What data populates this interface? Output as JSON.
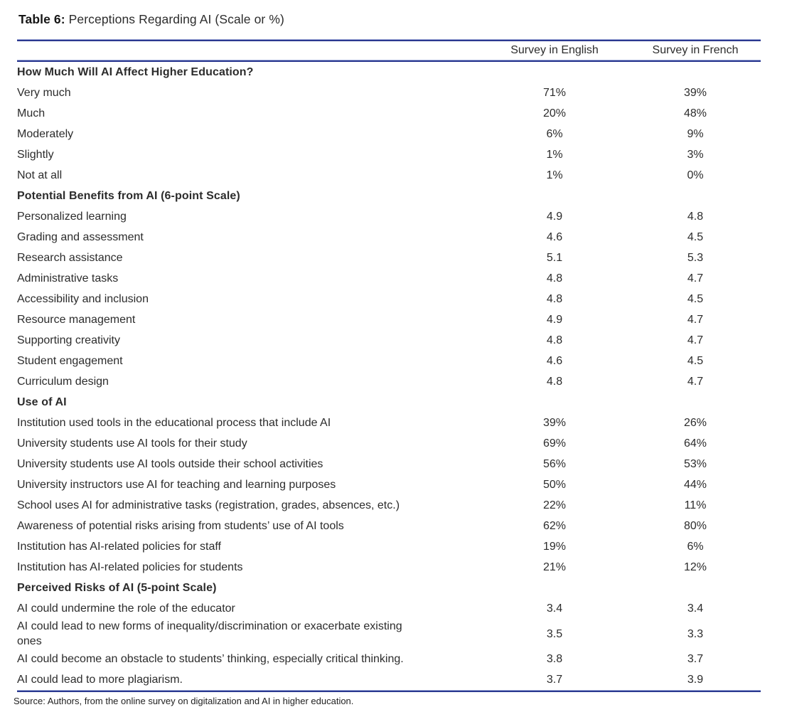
{
  "title": {
    "number": "Table 6:",
    "caption": "Perceptions Regarding AI (Scale or %)"
  },
  "table": {
    "columns": [
      "",
      "Survey in English",
      "Survey in French"
    ],
    "rows": [
      {
        "type": "section",
        "label": "How Much Will AI Affect Higher Education?"
      },
      {
        "type": "data",
        "label": "Very much",
        "english": "71%",
        "french": "39%"
      },
      {
        "type": "data",
        "label": "Much",
        "english": "20%",
        "french": "48%"
      },
      {
        "type": "data",
        "label": "Moderately",
        "english": "6%",
        "french": "9%"
      },
      {
        "type": "data",
        "label": "Slightly",
        "english": "1%",
        "french": "3%"
      },
      {
        "type": "data",
        "label": "Not at all",
        "english": "1%",
        "french": "0%"
      },
      {
        "type": "section",
        "label": "Potential Benefits from AI (6-point Scale)"
      },
      {
        "type": "data",
        "label": "Personalized learning",
        "english": "4.9",
        "french": "4.8"
      },
      {
        "type": "data",
        "label": "Grading and assessment",
        "english": "4.6",
        "french": "4.5"
      },
      {
        "type": "data",
        "label": "Research assistance",
        "english": "5.1",
        "french": "5.3"
      },
      {
        "type": "data",
        "label": "Administrative tasks",
        "english": "4.8",
        "french": "4.7"
      },
      {
        "type": "data",
        "label": "Accessibility and inclusion",
        "english": "4.8",
        "french": "4.5"
      },
      {
        "type": "data",
        "label": "Resource management",
        "english": "4.9",
        "french": "4.7"
      },
      {
        "type": "data",
        "label": "Supporting creativity",
        "english": "4.8",
        "french": "4.7"
      },
      {
        "type": "data",
        "label": "Student engagement",
        "english": "4.6",
        "french": "4.5"
      },
      {
        "type": "data",
        "label": "Curriculum design",
        "english": "4.8",
        "french": "4.7"
      },
      {
        "type": "section",
        "label": "Use of AI"
      },
      {
        "type": "data",
        "label": "Institution used tools in the educational process that include AI",
        "english": "39%",
        "french": "26%"
      },
      {
        "type": "data",
        "label": "University students use AI tools for their study",
        "english": "69%",
        "french": "64%"
      },
      {
        "type": "data",
        "label": "University students use AI tools outside their school activities",
        "english": "56%",
        "french": "53%"
      },
      {
        "type": "data",
        "label": "University instructors use AI for teaching and learning purposes",
        "english": "50%",
        "french": "44%"
      },
      {
        "type": "data",
        "label": "School uses AI for administrative tasks (registration, grades, absences, etc.)",
        "english": "22%",
        "french": "11%"
      },
      {
        "type": "data",
        "label": "Awareness of potential risks arising from students’ use of AI tools",
        "english": "62%",
        "french": "80%"
      },
      {
        "type": "data",
        "label": "Institution has AI-related policies for staff",
        "english": "19%",
        "french": "6%"
      },
      {
        "type": "data",
        "label": "Institution has AI-related policies for students",
        "english": "21%",
        "french": "12%"
      },
      {
        "type": "section",
        "label": "Perceived Risks of AI (5-point Scale)"
      },
      {
        "type": "data",
        "label": "AI could undermine the role of the educator",
        "english": "3.4",
        "french": "3.4"
      },
      {
        "type": "data",
        "label": "AI could lead to new forms of inequality/discrimination or exacerbate existing\nones",
        "english": "3.5",
        "french": "3.3"
      },
      {
        "type": "data",
        "label": "AI could become an obstacle to students’ thinking, especially critical thinking.",
        "english": "3.8",
        "french": "3.7"
      },
      {
        "type": "data",
        "label": "AI could lead to more plagiarism.",
        "english": "3.7",
        "french": "3.9"
      }
    ]
  },
  "source_note": "Source: Authors, from the online survey on digitalization and AI in higher education.",
  "colors": {
    "rule_blue": "#2b3990",
    "rule_blue_light": "#9aa6d6",
    "text": "#2c2c2c"
  }
}
